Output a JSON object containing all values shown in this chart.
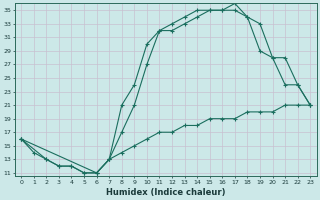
{
  "xlabel": "Humidex (Indice chaleur)",
  "bg_color": "#cce8e8",
  "grid_color": "#b8d8d8",
  "line_color": "#1a6e5e",
  "xticks": [
    0,
    1,
    2,
    3,
    4,
    5,
    6,
    7,
    8,
    9,
    10,
    11,
    12,
    13,
    14,
    15,
    16,
    17,
    18,
    19,
    20,
    21,
    22,
    23
  ],
  "yticks": [
    11,
    13,
    15,
    17,
    19,
    21,
    23,
    25,
    27,
    29,
    31,
    33,
    35
  ],
  "xlim": [
    -0.5,
    23.5
  ],
  "ylim": [
    10.5,
    36.0
  ],
  "line1_x": [
    0,
    1,
    2,
    3,
    4,
    5,
    6,
    7,
    8,
    9,
    10,
    11,
    12,
    13,
    14,
    15,
    16,
    17,
    18,
    19,
    20,
    21,
    22,
    23
  ],
  "line1_y": [
    16,
    14,
    13,
    12,
    12,
    11,
    11,
    13,
    14,
    15,
    16,
    17,
    17,
    18,
    18,
    19,
    19,
    19,
    20,
    20,
    20,
    21,
    21,
    21
  ],
  "line2_x": [
    0,
    2,
    3,
    4,
    5,
    6,
    7,
    8,
    9,
    10,
    11,
    12,
    13,
    14,
    15,
    16,
    17,
    18,
    19,
    20,
    21,
    22,
    23
  ],
  "line2_y": [
    16,
    13,
    12,
    12,
    11,
    11,
    13,
    17,
    21,
    27,
    32,
    32,
    33,
    34,
    35,
    35,
    35,
    34,
    33,
    28,
    24,
    24,
    21
  ],
  "line3_x": [
    0,
    6,
    7,
    8,
    9,
    10,
    11,
    12,
    13,
    14,
    15,
    16,
    17,
    18,
    19,
    20,
    21,
    22,
    23
  ],
  "line3_y": [
    16,
    11,
    13,
    21,
    24,
    30,
    32,
    33,
    34,
    35,
    35,
    35,
    36,
    34,
    29,
    28,
    28,
    24,
    21
  ]
}
